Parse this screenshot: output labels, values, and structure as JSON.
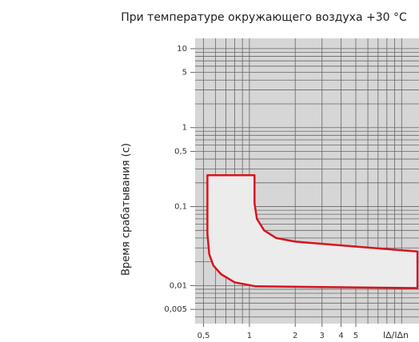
{
  "chart_data": {
    "type": "line",
    "title": "При температуре окружающего воздуха +30 °C",
    "ylabel": "Время срабатывания (с)",
    "xlabel": "I∆/I∆n",
    "xscale": "log",
    "yscale": "log",
    "xlim": [
      0.44,
      13
    ],
    "ylim": [
      0.0033,
      13.5
    ],
    "xticks": [
      {
        "value": 0.5,
        "label": "0,5"
      },
      1,
      2,
      3,
      4,
      5
    ],
    "yticks": [
      10,
      5,
      1,
      {
        "value": 0.5,
        "label": "0,5"
      },
      {
        "value": 0.1,
        "label": "0,1"
      },
      {
        "value": 0.01,
        "label": "0,01"
      },
      {
        "value": 0.005,
        "label": "0,005"
      }
    ],
    "xgrid": [
      0.5,
      0.6,
      0.7,
      0.8,
      0.9,
      1,
      2,
      3,
      4,
      5,
      6,
      7,
      8,
      9,
      10
    ],
    "ygrid": [
      0.004,
      0.005,
      0.006,
      0.007,
      0.008,
      0.009,
      0.01,
      0.02,
      0.03,
      0.04,
      0.05,
      0.06,
      0.07,
      0.08,
      0.09,
      0.1,
      0.2,
      0.3,
      0.4,
      0.5,
      0.6,
      0.7,
      0.8,
      0.9,
      1,
      2,
      3,
      4,
      5,
      6,
      7,
      8,
      9,
      10
    ],
    "background": "#d6d6d6",
    "series": [
      {
        "color": "#d7141e",
        "fill": "#ececec",
        "x": [
          0.53,
          1.08,
          1.08,
          1.12,
          1.25,
          1.5,
          2,
          12.7,
          12.7,
          1.1,
          0.8,
          0.65,
          0.58,
          0.545,
          0.53
        ],
        "values": [
          0.25,
          0.25,
          0.11,
          0.07,
          0.05,
          0.04,
          0.036,
          0.027,
          0.0093,
          0.0098,
          0.011,
          0.014,
          0.018,
          0.025,
          0.045
        ]
      }
    ]
  }
}
